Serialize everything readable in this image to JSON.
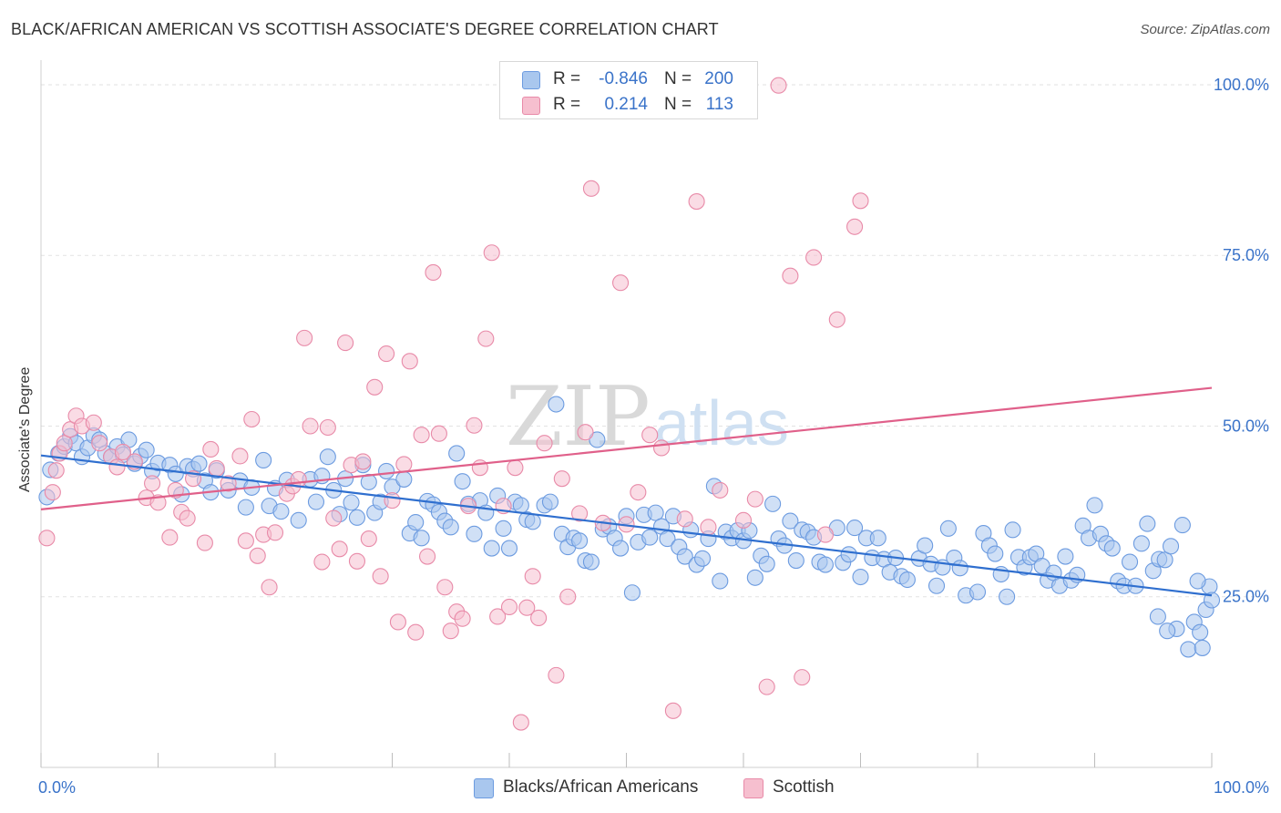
{
  "title": "BLACK/AFRICAN AMERICAN VS SCOTTISH ASSOCIATE'S DEGREE CORRELATION CHART",
  "source": "Source: ZipAtlas.com",
  "watermark": {
    "zip": "ZIP",
    "atlas": "atlas"
  },
  "legend": {
    "r_label": "R =",
    "n_label": "N =",
    "rows": [
      {
        "r": "-0.846",
        "n": "200",
        "color": "#a9c7ee",
        "border": "#6c9be0"
      },
      {
        "r": "0.214",
        "n": "113",
        "color": "#f6bfcf",
        "border": "#e88aa8"
      }
    ]
  },
  "bottom_legend": [
    {
      "label": "Blacks/African Americans",
      "color": "#a9c7ee",
      "border": "#6c9be0"
    },
    {
      "label": "Scottish",
      "color": "#f6bfcf",
      "border": "#e88aa8"
    }
  ],
  "chart_data": {
    "type": "scatter",
    "title": "BLACK/AFRICAN AMERICAN VS SCOTTISH ASSOCIATE'S DEGREE CORRELATION CHART",
    "xlabel": "",
    "ylabel": "Associate's Degree",
    "x_tick_labels": [
      "0.0%",
      "100.0%"
    ],
    "y_tick_labels": [
      "25.0%",
      "50.0%",
      "75.0%",
      "100.0%"
    ],
    "y_ticks": [
      25,
      50,
      75,
      100
    ],
    "xlim": [
      0,
      100
    ],
    "ylim": [
      0,
      102
    ],
    "grid": true,
    "series": [
      {
        "name": "Blacks/African Americans",
        "color": "#6c9be0",
        "fill": "#a9c7ee",
        "trend": {
          "x": [
            0,
            100
          ],
          "y": [
            45.7,
            25.2
          ]
        },
        "points": [
          [
            0.5,
            39.6
          ],
          [
            0.8,
            43.6
          ],
          [
            1.5,
            46.0
          ],
          [
            2.0,
            47.0
          ],
          [
            2.5,
            48.5
          ],
          [
            3.0,
            47.5
          ],
          [
            3.5,
            45.5
          ],
          [
            4.0,
            46.8
          ],
          [
            4.5,
            48.6
          ],
          [
            5.0,
            48.0
          ],
          [
            5.5,
            46.0
          ],
          [
            6.0,
            45.5
          ],
          [
            6.5,
            47.0
          ],
          [
            7.0,
            45.8
          ],
          [
            7.5,
            48.0
          ],
          [
            8.0,
            44.5
          ],
          [
            8.5,
            45.6
          ],
          [
            9.0,
            46.5
          ],
          [
            9.5,
            43.4
          ],
          [
            10.0,
            44.6
          ],
          [
            11.0,
            44.3
          ],
          [
            11.5,
            43.0
          ],
          [
            12.0,
            40.0
          ],
          [
            12.5,
            44.1
          ],
          [
            13.0,
            43.7
          ],
          [
            13.5,
            44.5
          ],
          [
            14.0,
            42.0
          ],
          [
            14.5,
            40.3
          ],
          [
            15.0,
            43.5
          ],
          [
            16.0,
            40.6
          ],
          [
            17.0,
            42.0
          ],
          [
            17.5,
            38.1
          ],
          [
            18.0,
            41.0
          ],
          [
            19.0,
            45.0
          ],
          [
            19.5,
            38.3
          ],
          [
            20.0,
            40.9
          ],
          [
            20.5,
            37.5
          ],
          [
            21.0,
            42.1
          ],
          [
            22.0,
            36.2
          ],
          [
            23.0,
            42.2
          ],
          [
            23.5,
            38.9
          ],
          [
            24.0,
            42.7
          ],
          [
            24.5,
            45.5
          ],
          [
            25.0,
            40.6
          ],
          [
            25.5,
            37.1
          ],
          [
            26.0,
            42.3
          ],
          [
            26.5,
            38.8
          ],
          [
            27.0,
            36.6
          ],
          [
            27.5,
            44.3
          ],
          [
            28.0,
            41.8
          ],
          [
            28.5,
            37.3
          ],
          [
            29.0,
            38.9
          ],
          [
            29.5,
            43.4
          ],
          [
            30.0,
            41.1
          ],
          [
            31.0,
            42.2
          ],
          [
            31.5,
            34.3
          ],
          [
            32.0,
            35.9
          ],
          [
            32.5,
            33.6
          ],
          [
            33.0,
            39.0
          ],
          [
            33.5,
            38.5
          ],
          [
            34.0,
            37.4
          ],
          [
            34.5,
            36.1
          ],
          [
            35.0,
            35.2
          ],
          [
            35.5,
            46.0
          ],
          [
            36.0,
            41.9
          ],
          [
            36.5,
            38.6
          ],
          [
            37.0,
            34.2
          ],
          [
            37.5,
            39.1
          ],
          [
            38.0,
            37.3
          ],
          [
            38.5,
            32.1
          ],
          [
            39.0,
            39.8
          ],
          [
            39.5,
            35.0
          ],
          [
            40.0,
            32.1
          ],
          [
            40.5,
            38.9
          ],
          [
            41.0,
            38.4
          ],
          [
            41.5,
            36.3
          ],
          [
            42.0,
            36.0
          ],
          [
            43.0,
            38.4
          ],
          [
            43.5,
            38.9
          ],
          [
            44.0,
            53.2
          ],
          [
            44.5,
            34.2
          ],
          [
            45.0,
            32.3
          ],
          [
            45.5,
            33.6
          ],
          [
            46.0,
            33.2
          ],
          [
            46.5,
            30.3
          ],
          [
            47.0,
            30.1
          ],
          [
            47.5,
            48.0
          ],
          [
            48.0,
            34.9
          ],
          [
            48.5,
            35.3
          ],
          [
            49.0,
            33.6
          ],
          [
            49.5,
            32.1
          ],
          [
            50.0,
            36.8
          ],
          [
            50.5,
            25.6
          ],
          [
            51.0,
            33.0
          ],
          [
            51.5,
            37.0
          ],
          [
            52.0,
            33.7
          ],
          [
            52.5,
            37.3
          ],
          [
            53.0,
            35.3
          ],
          [
            53.5,
            33.5
          ],
          [
            54.0,
            36.8
          ],
          [
            54.5,
            32.3
          ],
          [
            55.0,
            30.9
          ],
          [
            55.5,
            34.8
          ],
          [
            56.0,
            29.7
          ],
          [
            56.5,
            30.6
          ],
          [
            57.0,
            33.5
          ],
          [
            57.5,
            41.2
          ],
          [
            58.0,
            27.3
          ],
          [
            58.5,
            34.5
          ],
          [
            59.0,
            33.6
          ],
          [
            59.5,
            34.7
          ],
          [
            60.0,
            33.2
          ],
          [
            60.5,
            34.7
          ],
          [
            61.0,
            27.8
          ],
          [
            61.5,
            31.0
          ],
          [
            62.0,
            29.8
          ],
          [
            62.5,
            38.6
          ],
          [
            63.0,
            33.5
          ],
          [
            63.5,
            32.5
          ],
          [
            64.0,
            36.1
          ],
          [
            64.5,
            30.3
          ],
          [
            65.0,
            34.8
          ],
          [
            65.5,
            34.5
          ],
          [
            66.0,
            33.7
          ],
          [
            66.5,
            30.1
          ],
          [
            67.0,
            29.7
          ],
          [
            68.0,
            35.1
          ],
          [
            68.5,
            30.0
          ],
          [
            69.0,
            31.2
          ],
          [
            69.5,
            35.1
          ],
          [
            70.0,
            27.9
          ],
          [
            70.5,
            33.6
          ],
          [
            71.0,
            30.7
          ],
          [
            71.5,
            33.6
          ],
          [
            72.0,
            30.5
          ],
          [
            72.5,
            28.6
          ],
          [
            73.0,
            30.7
          ],
          [
            73.5,
            28.0
          ],
          [
            74.0,
            27.5
          ],
          [
            75.0,
            30.6
          ],
          [
            75.5,
            32.5
          ],
          [
            76.0,
            29.8
          ],
          [
            76.5,
            26.6
          ],
          [
            77.0,
            29.3
          ],
          [
            77.5,
            35.0
          ],
          [
            78.0,
            30.7
          ],
          [
            78.5,
            29.2
          ],
          [
            79.0,
            25.2
          ],
          [
            80.0,
            25.7
          ],
          [
            80.5,
            34.3
          ],
          [
            81.0,
            32.5
          ],
          [
            81.5,
            31.3
          ],
          [
            82.0,
            28.3
          ],
          [
            82.5,
            25.0
          ],
          [
            83.0,
            34.8
          ],
          [
            83.5,
            30.8
          ],
          [
            84.0,
            29.3
          ],
          [
            84.5,
            30.8
          ],
          [
            85.0,
            31.3
          ],
          [
            85.5,
            29.5
          ],
          [
            86.0,
            27.4
          ],
          [
            86.5,
            28.5
          ],
          [
            87.0,
            26.6
          ],
          [
            87.5,
            30.9
          ],
          [
            88.0,
            27.4
          ],
          [
            88.5,
            28.2
          ],
          [
            89.0,
            35.4
          ],
          [
            89.5,
            33.6
          ],
          [
            90.0,
            38.4
          ],
          [
            90.5,
            34.2
          ],
          [
            91.0,
            32.8
          ],
          [
            91.5,
            32.1
          ],
          [
            92.0,
            27.3
          ],
          [
            92.5,
            26.6
          ],
          [
            93.0,
            30.1
          ],
          [
            93.5,
            26.6
          ],
          [
            94.0,
            32.8
          ],
          [
            94.5,
            35.7
          ],
          [
            95.0,
            28.8
          ],
          [
            95.5,
            30.5
          ],
          [
            96.0,
            30.4
          ],
          [
            96.5,
            32.4
          ],
          [
            97.0,
            20.3
          ],
          [
            97.5,
            35.5
          ],
          [
            98.0,
            17.3
          ],
          [
            98.5,
            21.3
          ],
          [
            99.0,
            19.8
          ],
          [
            99.5,
            23.1
          ],
          [
            99.8,
            26.5
          ],
          [
            100.0,
            24.5
          ],
          [
            96.2,
            20.0
          ],
          [
            95.4,
            22.1
          ],
          [
            99.2,
            17.5
          ],
          [
            98.8,
            27.3
          ]
        ]
      },
      {
        "name": "Scottish",
        "color": "#e88aa8",
        "fill": "#f6bfcf",
        "trend": {
          "x": [
            0,
            100
          ],
          "y": [
            37.8,
            55.6
          ]
        },
        "points": [
          [
            0.5,
            33.6
          ],
          [
            1.0,
            40.3
          ],
          [
            1.3,
            43.5
          ],
          [
            1.6,
            46.0
          ],
          [
            2.0,
            47.5
          ],
          [
            2.5,
            49.5
          ],
          [
            3.0,
            51.5
          ],
          [
            3.5,
            50.0
          ],
          [
            4.5,
            50.5
          ],
          [
            5.0,
            47.5
          ],
          [
            6.0,
            45.5
          ],
          [
            6.5,
            44.0
          ],
          [
            7.0,
            46.2
          ],
          [
            8.0,
            44.8
          ],
          [
            9.0,
            39.5
          ],
          [
            9.5,
            41.6
          ],
          [
            10.0,
            38.8
          ],
          [
            11.0,
            33.7
          ],
          [
            11.5,
            40.6
          ],
          [
            12.0,
            37.4
          ],
          [
            12.5,
            36.5
          ],
          [
            13.0,
            42.3
          ],
          [
            14.0,
            32.9
          ],
          [
            14.5,
            46.6
          ],
          [
            15.0,
            43.8
          ],
          [
            16.0,
            41.6
          ],
          [
            17.0,
            45.6
          ],
          [
            17.5,
            33.2
          ],
          [
            18.0,
            51.0
          ],
          [
            18.5,
            31.0
          ],
          [
            19.0,
            34.1
          ],
          [
            19.5,
            26.4
          ],
          [
            20.0,
            34.4
          ],
          [
            21.0,
            40.1
          ],
          [
            21.5,
            41.2
          ],
          [
            22.0,
            42.2
          ],
          [
            22.5,
            62.9
          ],
          [
            23.0,
            50.0
          ],
          [
            24.0,
            30.1
          ],
          [
            24.5,
            49.8
          ],
          [
            25.0,
            36.5
          ],
          [
            25.5,
            32.0
          ],
          [
            26.0,
            62.2
          ],
          [
            26.5,
            44.3
          ],
          [
            27.0,
            30.2
          ],
          [
            27.5,
            44.8
          ],
          [
            28.0,
            33.5
          ],
          [
            28.5,
            55.7
          ],
          [
            29.0,
            28.0
          ],
          [
            29.5,
            60.6
          ],
          [
            30.0,
            39.1
          ],
          [
            30.5,
            21.3
          ],
          [
            31.0,
            44.4
          ],
          [
            31.5,
            59.5
          ],
          [
            32.0,
            19.8
          ],
          [
            32.5,
            48.7
          ],
          [
            33.0,
            30.9
          ],
          [
            33.5,
            72.5
          ],
          [
            34.0,
            48.9
          ],
          [
            34.5,
            26.4
          ],
          [
            35.0,
            20.0
          ],
          [
            35.5,
            22.8
          ],
          [
            36.0,
            21.8
          ],
          [
            36.5,
            38.3
          ],
          [
            37.0,
            50.1
          ],
          [
            37.5,
            43.9
          ],
          [
            38.0,
            62.8
          ],
          [
            38.5,
            75.4
          ],
          [
            39.0,
            22.1
          ],
          [
            39.5,
            38.3
          ],
          [
            40.0,
            23.5
          ],
          [
            40.5,
            43.9
          ],
          [
            41.0,
            6.6
          ],
          [
            41.5,
            23.4
          ],
          [
            42.0,
            28.0
          ],
          [
            42.5,
            21.9
          ],
          [
            43.0,
            47.5
          ],
          [
            44.0,
            13.5
          ],
          [
            44.5,
            42.3
          ],
          [
            45.0,
            25.0
          ],
          [
            46.0,
            37.2
          ],
          [
            46.5,
            49.1
          ],
          [
            47.0,
            84.8
          ],
          [
            48.0,
            35.8
          ],
          [
            49.5,
            71.0
          ],
          [
            50.0,
            35.6
          ],
          [
            51.0,
            40.3
          ],
          [
            52.0,
            48.7
          ],
          [
            53.0,
            46.8
          ],
          [
            54.0,
            8.3
          ],
          [
            55.0,
            36.4
          ],
          [
            56.0,
            82.9
          ],
          [
            57.0,
            35.2
          ],
          [
            58.0,
            40.6
          ],
          [
            59.0,
            99.6
          ],
          [
            60.0,
            36.2
          ],
          [
            61.0,
            39.3
          ],
          [
            62.0,
            11.8
          ],
          [
            63.0,
            99.9
          ],
          [
            64.0,
            72.0
          ],
          [
            65.0,
            13.2
          ],
          [
            66.0,
            74.7
          ],
          [
            67.0,
            34.1
          ],
          [
            68.0,
            65.6
          ],
          [
            69.5,
            79.2
          ],
          [
            70.0,
            83.0
          ]
        ]
      }
    ]
  }
}
